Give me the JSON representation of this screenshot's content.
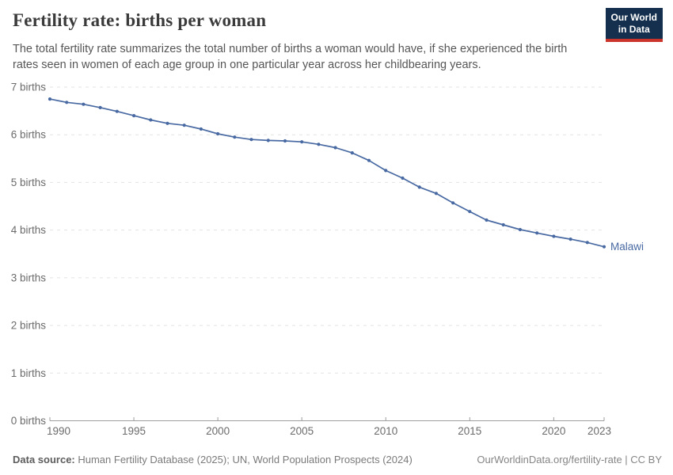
{
  "header": {
    "title": "Fertility rate: births per woman",
    "subtitle": "The total fertility rate summarizes the total number of births a woman would have, if she experienced the birth rates seen in women of each age group in one particular year across her childbearing years.",
    "logo": {
      "line1": "Our World",
      "line2": "in Data",
      "bg_color": "#14304e",
      "accent_color": "#ca342a"
    }
  },
  "chart_data": {
    "type": "line",
    "title": "Fertility rate: births per woman",
    "xlabel": "",
    "ylabel": "births",
    "xlim": [
      1990,
      2023
    ],
    "ylim": [
      0,
      7
    ],
    "grid": "horizontal-dashed",
    "legend_position": "end-of-line",
    "x": [
      1990,
      1991,
      1992,
      1993,
      1994,
      1995,
      1996,
      1997,
      1998,
      1999,
      2000,
      2001,
      2002,
      2003,
      2004,
      2005,
      2006,
      2007,
      2008,
      2009,
      2010,
      2011,
      2012,
      2013,
      2014,
      2015,
      2016,
      2017,
      2018,
      2019,
      2020,
      2021,
      2022,
      2023
    ],
    "series": [
      {
        "name": "Malawi",
        "color": "#4869a2",
        "values": [
          6.75,
          6.68,
          6.64,
          6.57,
          6.49,
          6.4,
          6.31,
          6.24,
          6.2,
          6.12,
          6.02,
          5.95,
          5.9,
          5.88,
          5.87,
          5.85,
          5.8,
          5.73,
          5.62,
          5.46,
          5.25,
          5.09,
          4.9,
          4.77,
          4.57,
          4.39,
          4.21,
          4.11,
          4.01,
          3.94,
          3.87,
          3.81,
          3.74,
          3.65
        ]
      }
    ],
    "x_ticks": [
      1990,
      1995,
      2000,
      2005,
      2010,
      2015,
      2020,
      2023
    ],
    "y_ticks": [
      0,
      1,
      2,
      3,
      4,
      5,
      6,
      7
    ],
    "y_tick_labels": [
      "0 births",
      "1 births",
      "2 births",
      "3 births",
      "4 births",
      "5 births",
      "6 births",
      "7 births"
    ],
    "end_label": "Malawi",
    "colors": {
      "grid": "#e3e3e3",
      "axis": "#9e9e9e",
      "tick_text": "#6b6b6b",
      "line": "#4869a2"
    }
  },
  "footer": {
    "source_label": "Data source:",
    "source_text": " Human Fertility Database (2025); UN, World Population Prospects (2024)",
    "link_text": "OurWorldinData.org/fertility-rate | CC BY"
  }
}
